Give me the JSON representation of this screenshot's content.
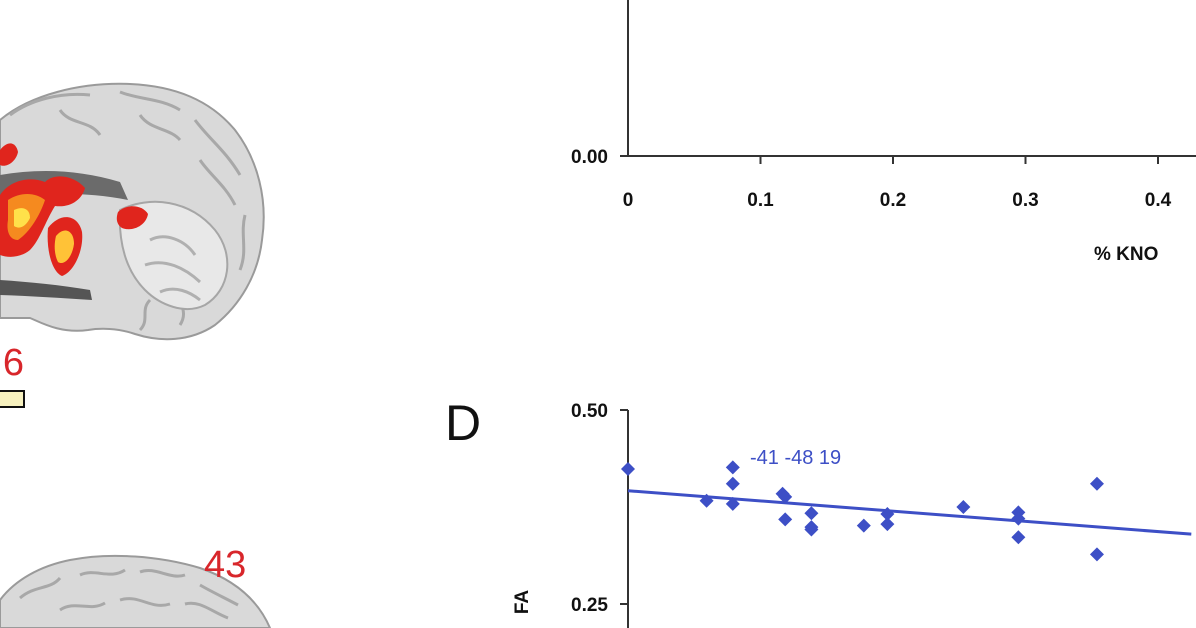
{
  "brain_figure": {
    "slice_upper_label": "6",
    "slice_lower_label": "43",
    "colors": {
      "activation_red": "#e0251d",
      "activation_orange": "#f58a1f",
      "activation_yellow": "#ffe14a",
      "label_red": "#d8262b"
    }
  },
  "chart_top": {
    "y_tick_labels": [
      "0.00"
    ],
    "x_tick_labels": [
      "0",
      "0.1",
      "0.2",
      "0.3",
      "0.4"
    ],
    "xlabel_visible": "% KNO"
  },
  "chart_d": {
    "panel_label": "D",
    "annotation": "-41 -48 19",
    "ylabel": "FA",
    "y_tick_labels": [
      "0.50",
      "0.25"
    ]
  },
  "chart_data": [
    {
      "type": "line",
      "x_tick_values": [
        0,
        0.1,
        0.2,
        0.3,
        0.4
      ],
      "y_tick_values": [
        0.0
      ],
      "xlabel": "% KNO",
      "ylabel": "",
      "grid": false
    },
    {
      "type": "scatter",
      "panel": "D",
      "title": "",
      "annotation": "-41 -48 19",
      "xlabel": "",
      "ylabel": "FA",
      "ylim": [
        0.25,
        0.5
      ],
      "xlim": [
        0,
        0.43
      ],
      "color": "#3d4fc6",
      "series": [
        {
          "points": [
            [
              0.0,
              0.424
            ],
            [
              0.06,
              0.383
            ],
            [
              0.08,
              0.426
            ],
            [
              0.08,
              0.405
            ],
            [
              0.08,
              0.379
            ],
            [
              0.118,
              0.392
            ],
            [
              0.12,
              0.388
            ],
            [
              0.12,
              0.359
            ],
            [
              0.14,
              0.367
            ],
            [
              0.14,
              0.349
            ],
            [
              0.14,
              0.346
            ],
            [
              0.18,
              0.351
            ],
            [
              0.198,
              0.366
            ],
            [
              0.198,
              0.353
            ],
            [
              0.256,
              0.375
            ],
            [
              0.298,
              0.368
            ],
            [
              0.298,
              0.36
            ],
            [
              0.298,
              0.336
            ],
            [
              0.358,
              0.405
            ],
            [
              0.358,
              0.314
            ]
          ]
        }
      ],
      "trendline": {
        "x": [
          0,
          0.43
        ],
        "y": [
          0.396,
          0.34
        ]
      }
    }
  ]
}
